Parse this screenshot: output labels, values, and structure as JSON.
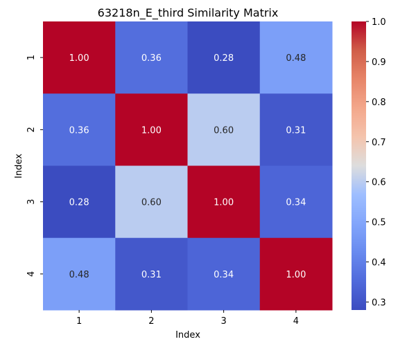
{
  "chart_data": {
    "type": "heatmap",
    "title": "63218n_E_third Similarity Matrix",
    "xlabel": "Index",
    "ylabel": "Index",
    "x_categories": [
      "1",
      "2",
      "3",
      "4"
    ],
    "y_categories": [
      "1",
      "2",
      "3",
      "4"
    ],
    "values": [
      [
        1.0,
        0.36,
        0.28,
        0.48
      ],
      [
        0.36,
        1.0,
        0.6,
        0.31
      ],
      [
        0.28,
        0.6,
        1.0,
        0.34
      ],
      [
        0.48,
        0.31,
        0.34,
        1.0
      ]
    ],
    "value_labels": [
      [
        "1.00",
        "0.36",
        "0.28",
        "0.48"
      ],
      [
        "0.36",
        "1.00",
        "0.60",
        "0.31"
      ],
      [
        "0.28",
        "0.60",
        "1.00",
        "0.34"
      ],
      [
        "0.48",
        "0.31",
        "0.34",
        "1.00"
      ]
    ],
    "colormap": "coolwarm",
    "vmin": 0.28,
    "vmax": 1.0,
    "colorbar_ticks": [
      0.3,
      0.4,
      0.5,
      0.6,
      0.7,
      0.8,
      0.9,
      1.0
    ],
    "colorbar_tick_labels": [
      "0.3",
      "0.4",
      "0.5",
      "0.6",
      "0.7",
      "0.8",
      "0.9",
      "1.0"
    ]
  }
}
